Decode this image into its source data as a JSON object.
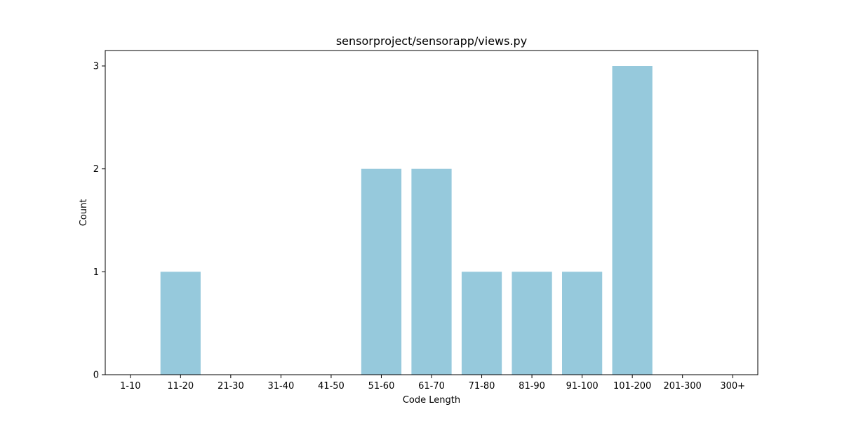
{
  "chart_data": {
    "type": "bar",
    "title": "sensorproject/sensorapp/views.py",
    "xlabel": "Code Length",
    "ylabel": "Count",
    "categories": [
      "1-10",
      "11-20",
      "21-30",
      "31-40",
      "41-50",
      "51-60",
      "61-70",
      "71-80",
      "81-90",
      "91-100",
      "101-200",
      "201-300",
      "300+"
    ],
    "values": [
      0,
      1,
      0,
      0,
      0,
      2,
      2,
      1,
      1,
      1,
      3,
      0,
      0
    ],
    "ylim": [
      0,
      3.15
    ],
    "yticks": [
      "0",
      "1",
      "2",
      "3"
    ],
    "bar_color": "#96c9dc",
    "grid": false,
    "legend": "none"
  }
}
